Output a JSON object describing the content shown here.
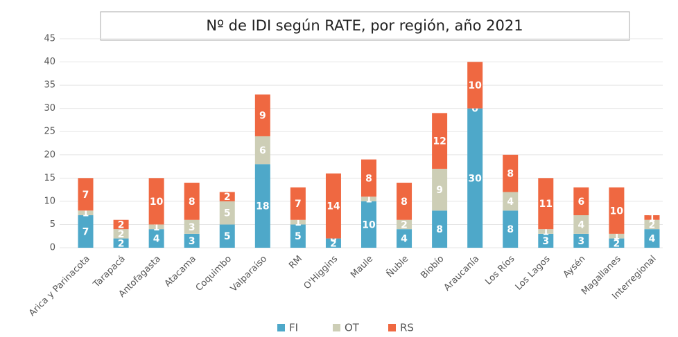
{
  "chart_data": {
    "type": "stacked_bar",
    "title": "Nº de IDI según RATE, por región, año 2021",
    "categories": [
      "Arica y Parinacota",
      "Tarapacá",
      "Antofagasta",
      "Atacama",
      "Coquimbo",
      "Valparaíso",
      "RM",
      "O'Higgins",
      "Maule",
      "Ñuble",
      "Biobío",
      "Araucanía",
      "Los Ríos",
      "Los Lagos",
      "Aysén",
      "Magallanes",
      "Interregional"
    ],
    "series": [
      {
        "name": "FI",
        "color": "#4ea8c9",
        "values": [
          7,
          2,
          4,
          3,
          5,
          18,
          5,
          2,
          10,
          4,
          8,
          30,
          8,
          3,
          3,
          2,
          4
        ]
      },
      {
        "name": "OT",
        "color": "#cdceb6",
        "values": [
          1,
          2,
          1,
          3,
          5,
          6,
          1,
          0,
          1,
          2,
          9,
          0,
          4,
          1,
          4,
          1,
          2
        ]
      },
      {
        "name": "RS",
        "color": "#ef6841",
        "values": [
          7,
          2,
          10,
          8,
          2,
          9,
          7,
          14,
          8,
          8,
          12,
          10,
          8,
          11,
          6,
          10,
          1
        ]
      }
    ],
    "ylim": [
      0,
      45
    ],
    "yticks": [
      0,
      5,
      10,
      15,
      20,
      25,
      30,
      35,
      40,
      45
    ],
    "grid": true,
    "legend": "bottom"
  }
}
